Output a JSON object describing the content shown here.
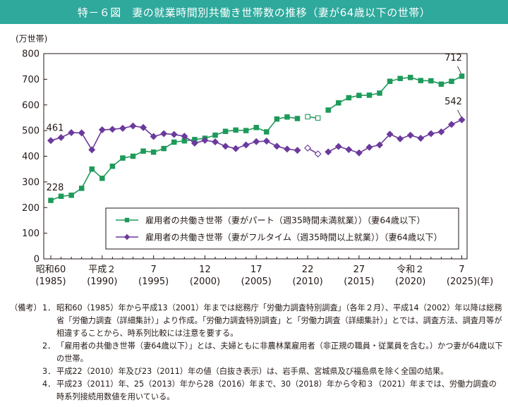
{
  "title": "特－６図　妻の就業時間別共働き世帯数の推移（妻が64歳以下の世帯）",
  "chart_data": {
    "type": "line",
    "unit_label": "(万世帯)",
    "ylim": [
      0,
      800
    ],
    "yticks": [
      "0",
      "100",
      "200",
      "300",
      "400",
      "500",
      "600",
      "700",
      "800"
    ],
    "year_unit": "(年)",
    "x_ticks": [
      {
        "year": 1985,
        "era": "昭和60",
        "west": "(1985)"
      },
      {
        "year": 1990,
        "era": "平成２",
        "west": "(1990)"
      },
      {
        "year": 1995,
        "era": "7",
        "west": "(1995)"
      },
      {
        "year": 2000,
        "era": "12",
        "west": "(2000)"
      },
      {
        "year": 2005,
        "era": "17",
        "west": "(2005)"
      },
      {
        "year": 2010,
        "era": "22",
        "west": "(2010)"
      },
      {
        "year": 2015,
        "era": "27",
        "west": "(2015)"
      },
      {
        "year": 2020,
        "era": "令和２",
        "west": "(2020)"
      },
      {
        "year": 2025,
        "era": "7",
        "west": "(2025)"
      }
    ],
    "series": [
      {
        "name": "雇用者の共働き世帯（妻がパート（週35時間未満就業））（妻64歳以下）",
        "color": "#1e9a5a",
        "marker": "square",
        "x": [
          1985,
          1986,
          1987,
          1988,
          1989,
          1990,
          1991,
          1992,
          1993,
          1994,
          1995,
          1996,
          1997,
          1998,
          1999,
          2000,
          2001,
          2002,
          2003,
          2004,
          2005,
          2006,
          2007,
          2008,
          2009,
          2010,
          2011,
          2012,
          2013,
          2014,
          2015,
          2016,
          2017,
          2018,
          2019,
          2020,
          2021,
          2022,
          2023,
          2024,
          2025
        ],
        "values": [
          228,
          244,
          248,
          275,
          350,
          314,
          361,
          393,
          400,
          420,
          416,
          430,
          455,
          460,
          465,
          470,
          482,
          497,
          502,
          500,
          512,
          495,
          545,
          553,
          547,
          554,
          549,
          580,
          608,
          628,
          637,
          638,
          646,
          692,
          703,
          707,
          695,
          694,
          681,
          692,
          712
        ],
        "gap_after": [
          2009,
          2011
        ],
        "hollow": [
          2010,
          2011
        ],
        "labels": {
          "1985": "228",
          "2025": "712"
        }
      },
      {
        "name": "雇用者の共働き世帯（妻がフルタイム（週35時間以上就業））（妻64歳以下）",
        "color": "#6b3a9c",
        "marker": "diamond",
        "x": [
          1985,
          1986,
          1987,
          1988,
          1989,
          1990,
          1991,
          1992,
          1993,
          1994,
          1995,
          1996,
          1997,
          1998,
          1999,
          2000,
          2001,
          2002,
          2003,
          2004,
          2005,
          2006,
          2007,
          2008,
          2009,
          2010,
          2011,
          2012,
          2013,
          2014,
          2015,
          2016,
          2017,
          2018,
          2019,
          2020,
          2021,
          2022,
          2023,
          2024,
          2025
        ],
        "values": [
          461,
          473,
          492,
          491,
          425,
          503,
          505,
          509,
          518,
          512,
          477,
          488,
          485,
          478,
          451,
          462,
          456,
          439,
          430,
          444,
          457,
          459,
          439,
          428,
          423,
          432,
          409,
          417,
          438,
          426,
          413,
          435,
          444,
          486,
          468,
          482,
          470,
          488,
          495,
          524,
          542
        ],
        "gap_after": [
          2009,
          2011
        ],
        "hollow": [
          2010,
          2011
        ],
        "labels": {
          "1985": "461",
          "2025": "542"
        }
      }
    ],
    "legend_position": "bottom-right-inside"
  },
  "notes": {
    "head": "（備考）",
    "items": [
      {
        "num": "1．",
        "text": "昭和60（1985）年から平成13（2001）年までは総務庁「労働力調査特別調査」（各年２月）、平成14（2002）年以降は総務省「労働力調査（詳細集計）」より作成。「労働力調査特別調査」と「労働力調査（詳細集計）」とでは、調査方法、調査月等が相違することから、時系列比較には注意を要する。"
      },
      {
        "num": "2．",
        "text": "「雇用者の共働き世帯（妻64歳以下）」とは、夫婦ともに非農林業雇用者（非正規の職員・従業員を含む。）かつ妻が64歳以下の世帯。"
      },
      {
        "num": "3．",
        "text": "平成22（2010）年及び23（2011）年の値（白抜き表示）は、岩手県、宮城県及び福島県を除く全国の結果。"
      },
      {
        "num": "4．",
        "text": "平成23（2011）年、25（2013）年から28（2016）年まで、30（2018）年から令和３（2021）年までは、労働力調査の時系列接続用数値を用いている。"
      }
    ]
  }
}
